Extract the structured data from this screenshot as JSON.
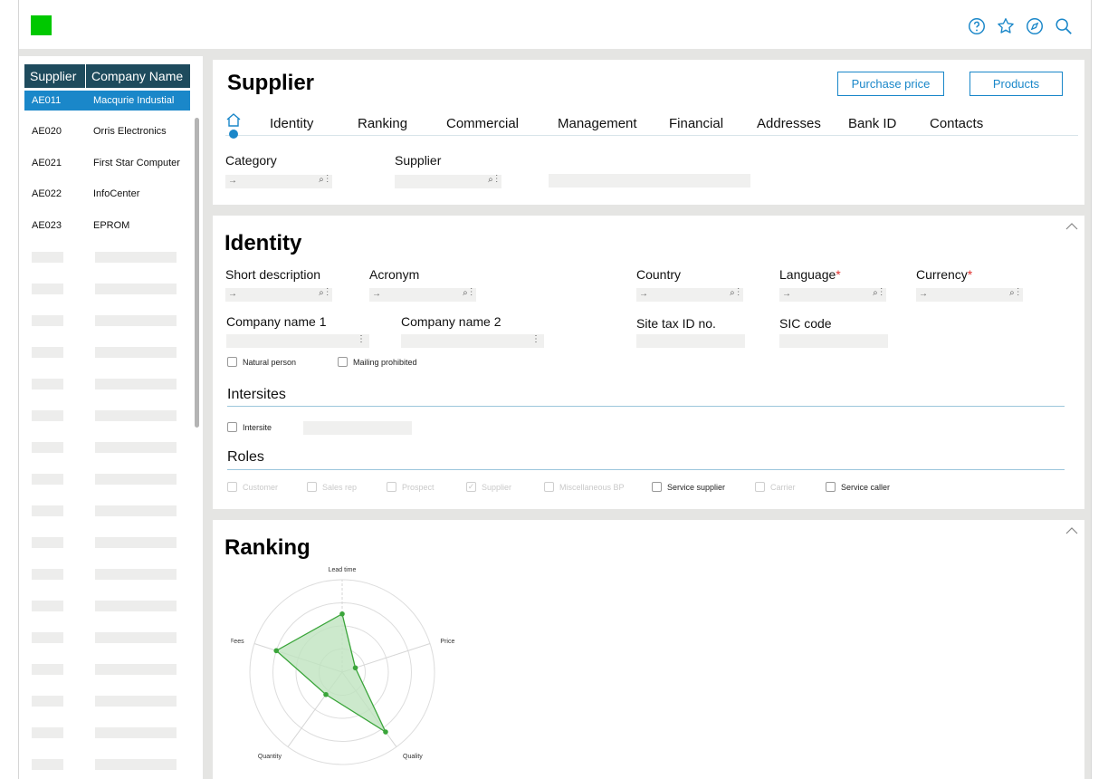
{
  "topbar": {
    "brand_color": "#00c800",
    "icons": [
      "help-icon",
      "favorite-star-icon",
      "compass-icon",
      "search-icon"
    ]
  },
  "left_list": {
    "headers": [
      "Supplier",
      "Company Name"
    ],
    "rows": [
      {
        "code": "AE011",
        "name": "Macqurie Industial",
        "selected": true
      },
      {
        "code": "AE020",
        "name": "Orris Electronics",
        "selected": false
      },
      {
        "code": "AE021",
        "name": "First Star Computer",
        "selected": false
      },
      {
        "code": "AE022",
        "name": "InfoCenter",
        "selected": false
      },
      {
        "code": "AE023",
        "name": "EPROM",
        "selected": false
      }
    ]
  },
  "supplier_card": {
    "title": "Supplier",
    "buttons": {
      "purchase_price": "Purchase price",
      "products": "Products"
    },
    "tabs": [
      "Identity",
      "Ranking",
      "Commercial",
      "Management",
      "Financial",
      "Addresses",
      "Bank ID",
      "Contacts"
    ],
    "fields": {
      "category_label": "Category",
      "supplier_label": "Supplier"
    },
    "arrow": "→"
  },
  "identity_card": {
    "title": "Identity",
    "labels": {
      "short_description": "Short description",
      "acronym": "Acronym",
      "country": "Country",
      "language": "Language",
      "currency": "Currency",
      "company_name_1": "Company name 1",
      "company_name_2": "Company name 2",
      "site_tax_id": "Site tax ID no.",
      "sic_code": "SIC code"
    },
    "required_mark": "*",
    "checkboxes": {
      "natural_person": "Natural person",
      "mailing_prohibited": "Mailing prohibited"
    },
    "intersites": {
      "title": "Intersites",
      "checkbox": "Intersite"
    },
    "roles": {
      "title": "Roles",
      "items": [
        {
          "label": "Customer",
          "checked": false,
          "disabled": true
        },
        {
          "label": "Sales rep",
          "checked": false,
          "disabled": true
        },
        {
          "label": "Prospect",
          "checked": false,
          "disabled": true
        },
        {
          "label": "Supplier",
          "checked": true,
          "disabled": true
        },
        {
          "label": "Miscellaneous BP",
          "checked": false,
          "disabled": true
        },
        {
          "label": "Service supplier",
          "checked": false,
          "disabled": false
        },
        {
          "label": "Carrier",
          "checked": false,
          "disabled": true
        },
        {
          "label": "Service caller",
          "checked": false,
          "disabled": false
        }
      ]
    }
  },
  "ranking_card": {
    "title": "Ranking"
  },
  "chart_data": {
    "type": "radar",
    "axes": [
      "Lead time",
      "Price",
      "Quality",
      "Quantity",
      "Fees"
    ],
    "values": [
      0.63,
      0.15,
      0.8,
      0.3,
      0.75
    ],
    "rings": 4,
    "series_color": "#3aa53a",
    "fill_color": "#bfe3bf"
  }
}
